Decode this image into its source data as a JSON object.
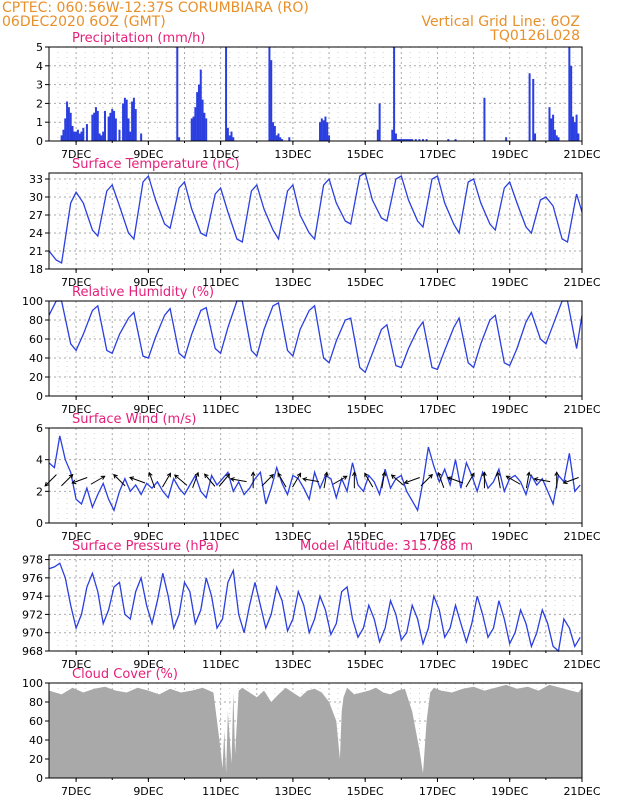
{
  "header": {
    "line1_left": "CPTEC:   060:56W-12:37S   CORUMBIARA (RO)",
    "line2_left": "06DEC2020 6OZ (GMT)",
    "line2_right": "Vertical Grid Line: 6OZ",
    "line3_right": "TQ0126L028"
  },
  "colors": {
    "header": "#e8902a",
    "title": "#e6207a",
    "series": "#2b3fe0",
    "cloud": "#a9a9a9",
    "grid": "#aaaaaa"
  },
  "x_axis": {
    "start": "06DEC2020 06Z",
    "end": "21DEC2020",
    "tick_labels": [
      "7DEC",
      "9DEC",
      "11DEC",
      "13DEC",
      "15DEC",
      "17DEC",
      "19DEC",
      "21DEC"
    ],
    "tick_days": [
      7,
      9,
      11,
      13,
      15,
      17,
      19,
      21
    ]
  },
  "chart_data": [
    {
      "type": "bar",
      "title": "Precipitation (mm/h)",
      "ylim": [
        0,
        5
      ],
      "yticks": [
        "0",
        "1",
        "2",
        "3",
        "4",
        "5"
      ],
      "x": [
        6.6,
        6.65,
        6.7,
        6.75,
        6.8,
        6.85,
        6.9,
        6.95,
        7.0,
        7.05,
        7.1,
        7.15,
        7.2,
        7.3,
        7.45,
        7.5,
        7.55,
        7.6,
        7.65,
        7.7,
        7.75,
        7.8,
        7.9,
        7.95,
        8.0,
        8.05,
        8.1,
        8.2,
        8.3,
        8.35,
        8.4,
        8.45,
        8.5,
        8.55,
        8.6,
        8.65,
        8.8,
        9.8,
        9.85,
        10.2,
        10.25,
        10.3,
        10.35,
        10.4,
        10.45,
        10.5,
        10.55,
        10.6,
        11.15,
        11.2,
        11.25,
        11.3,
        11.35,
        12.35,
        12.4,
        12.45,
        12.5,
        12.55,
        12.6,
        12.65,
        12.7,
        12.9,
        13.75,
        13.8,
        13.85,
        13.9,
        13.95,
        14.0,
        15.35,
        15.4,
        15.75,
        15.8,
        15.85,
        15.9,
        15.95,
        16.0,
        16.05,
        16.1,
        16.15,
        16.2,
        16.25,
        16.3,
        16.4,
        16.5,
        16.6,
        16.7,
        17.3,
        17.5,
        18.3,
        18.9,
        19.55,
        19.65,
        19.7,
        20.1,
        20.15,
        20.2,
        20.25,
        20.3,
        20.35,
        20.65,
        20.7,
        20.75,
        20.8,
        20.85,
        20.9
      ],
      "values": [
        0.3,
        0.6,
        1.2,
        2.1,
        1.8,
        1.5,
        0.8,
        0.5,
        0.5,
        0.6,
        0.4,
        0.5,
        0.7,
        0.9,
        1.4,
        1.5,
        1.8,
        1.6,
        0.4,
        0.3,
        0.5,
        1.6,
        1.3,
        1.5,
        1.7,
        1.6,
        1.2,
        0.6,
        2.0,
        2.3,
        2.2,
        1.2,
        0.5,
        2.1,
        2.3,
        1.7,
        0.4,
        5.0,
        0.2,
        1.2,
        1.3,
        1.8,
        2.6,
        3.0,
        3.8,
        2.2,
        1.5,
        1.2,
        5.0,
        0.7,
        0.3,
        0.5,
        0.2,
        5.0,
        4.3,
        1.0,
        0.8,
        0.3,
        0.4,
        0.2,
        0.1,
        0.2,
        1.0,
        1.2,
        1.1,
        1.3,
        1.0,
        0.3,
        0.6,
        2.0,
        0.6,
        5.0,
        0.4,
        0.1,
        0.1,
        0.1,
        0.1,
        0.1,
        0.1,
        0.1,
        0.1,
        0.1,
        0.1,
        0.1,
        0.1,
        0.1,
        0.1,
        0.1,
        2.3,
        0.2,
        3.6,
        3.3,
        0.4,
        1.8,
        1.2,
        1.4,
        0.6,
        0.3,
        0.2,
        5.0,
        4.0,
        1.3,
        1.0,
        1.4,
        0.4
      ]
    },
    {
      "type": "line",
      "title": "Surface Temperature (nC)",
      "ylim": [
        18,
        34
      ],
      "yticks": [
        "18",
        "21",
        "24",
        "27",
        "30",
        "33"
      ],
      "x": [
        6.25,
        6.45,
        6.6,
        6.85,
        7.0,
        7.2,
        7.45,
        7.6,
        7.85,
        8.0,
        8.2,
        8.45,
        8.6,
        8.85,
        9.0,
        9.2,
        9.45,
        9.6,
        9.85,
        10.0,
        10.2,
        10.45,
        10.6,
        10.85,
        11.0,
        11.2,
        11.45,
        11.6,
        11.85,
        12.0,
        12.2,
        12.45,
        12.6,
        12.85,
        13.0,
        13.2,
        13.45,
        13.6,
        13.85,
        14.0,
        14.2,
        14.45,
        14.6,
        14.85,
        15.0,
        15.2,
        15.45,
        15.6,
        15.85,
        16.0,
        16.2,
        16.45,
        16.6,
        16.85,
        17.0,
        17.2,
        17.45,
        17.6,
        17.85,
        18.0,
        18.2,
        18.45,
        18.6,
        18.85,
        19.0,
        19.2,
        19.45,
        19.6,
        19.85,
        20.0,
        20.2,
        20.45,
        20.6,
        20.85,
        21.0
      ],
      "values": [
        21.0,
        19.5,
        19.0,
        29.0,
        30.8,
        29.0,
        24.5,
        23.5,
        31.0,
        32.0,
        28.5,
        24.0,
        23.0,
        32.5,
        33.5,
        29.5,
        25.5,
        24.8,
        31.5,
        32.5,
        28.0,
        24.0,
        23.5,
        30.5,
        31.5,
        27.5,
        23.0,
        22.5,
        31.0,
        32.0,
        28.0,
        24.5,
        23.0,
        31.0,
        32.0,
        27.0,
        24.0,
        23.0,
        32.0,
        33.0,
        29.0,
        26.0,
        25.5,
        33.5,
        34.0,
        29.5,
        26.5,
        26.0,
        33.0,
        33.5,
        29.5,
        26.0,
        25.0,
        33.0,
        33.5,
        29.0,
        25.5,
        24.0,
        32.5,
        33.0,
        29.0,
        25.5,
        24.5,
        31.5,
        32.5,
        29.0,
        25.0,
        24.0,
        29.5,
        30.0,
        28.5,
        23.0,
        22.5,
        30.5,
        27.5
      ]
    },
    {
      "type": "line",
      "title": "Relative Humidity (%)",
      "ylim": [
        0,
        100
      ],
      "yticks": [
        "0",
        "20",
        "40",
        "60",
        "80",
        "100"
      ],
      "x": [
        6.25,
        6.45,
        6.6,
        6.85,
        7.0,
        7.2,
        7.45,
        7.6,
        7.85,
        8.0,
        8.2,
        8.45,
        8.6,
        8.85,
        9.0,
        9.2,
        9.45,
        9.6,
        9.85,
        10.0,
        10.2,
        10.45,
        10.6,
        10.85,
        11.0,
        11.2,
        11.45,
        11.6,
        11.85,
        12.0,
        12.2,
        12.45,
        12.6,
        12.85,
        13.0,
        13.2,
        13.45,
        13.6,
        13.85,
        14.0,
        14.2,
        14.45,
        14.6,
        14.85,
        15.0,
        15.2,
        15.45,
        15.6,
        15.85,
        16.0,
        16.2,
        16.45,
        16.6,
        16.85,
        17.0,
        17.2,
        17.45,
        17.6,
        17.85,
        18.0,
        18.2,
        18.45,
        18.6,
        18.85,
        19.0,
        19.2,
        19.45,
        19.6,
        19.85,
        20.0,
        20.2,
        20.45,
        20.6,
        20.85,
        21.0
      ],
      "values": [
        85,
        100,
        100,
        55,
        48,
        65,
        90,
        95,
        48,
        45,
        65,
        82,
        88,
        42,
        40,
        62,
        85,
        92,
        45,
        40,
        65,
        90,
        93,
        50,
        45,
        72,
        100,
        100,
        48,
        42,
        70,
        95,
        98,
        48,
        42,
        70,
        90,
        95,
        40,
        35,
        58,
        80,
        82,
        30,
        25,
        45,
        70,
        75,
        32,
        30,
        50,
        70,
        78,
        30,
        28,
        48,
        72,
        82,
        35,
        30,
        55,
        80,
        85,
        35,
        32,
        50,
        78,
        88,
        60,
        55,
        75,
        100,
        100,
        50,
        85
      ]
    },
    {
      "type": "line",
      "title": "Surface Wind (m/s)",
      "ylim": [
        0,
        6
      ],
      "yticks": [
        "0",
        "2",
        "4",
        "6"
      ],
      "x": [
        6.25,
        6.4,
        6.55,
        6.7,
        6.85,
        7.0,
        7.15,
        7.3,
        7.45,
        7.6,
        7.75,
        7.9,
        8.05,
        8.2,
        8.35,
        8.5,
        8.65,
        8.8,
        8.95,
        9.1,
        9.25,
        9.4,
        9.55,
        9.7,
        9.85,
        10.0,
        10.15,
        10.3,
        10.45,
        10.6,
        10.75,
        10.9,
        11.05,
        11.2,
        11.35,
        11.5,
        11.65,
        11.8,
        11.95,
        12.1,
        12.25,
        12.4,
        12.55,
        12.7,
        12.85,
        13.0,
        13.15,
        13.3,
        13.45,
        13.6,
        13.75,
        13.9,
        14.05,
        14.2,
        14.35,
        14.5,
        14.65,
        14.8,
        14.95,
        15.1,
        15.25,
        15.4,
        15.55,
        15.7,
        15.85,
        16.0,
        16.15,
        16.3,
        16.45,
        16.6,
        16.75,
        16.9,
        17.05,
        17.2,
        17.35,
        17.5,
        17.65,
        17.8,
        17.95,
        18.1,
        18.25,
        18.4,
        18.55,
        18.7,
        18.85,
        19.0,
        19.15,
        19.3,
        19.45,
        19.6,
        19.75,
        19.9,
        20.05,
        20.2,
        20.35,
        20.5,
        20.65,
        20.8,
        20.95
      ],
      "values": [
        3.8,
        3.5,
        5.5,
        4.0,
        3.2,
        1.5,
        1.2,
        2.2,
        1.0,
        1.8,
        2.5,
        1.5,
        0.8,
        2.0,
        2.8,
        2.0,
        2.4,
        1.8,
        2.5,
        2.2,
        2.6,
        2.0,
        1.6,
        2.8,
        2.2,
        1.8,
        2.4,
        3.0,
        2.0,
        1.6,
        3.0,
        2.4,
        2.8,
        3.2,
        2.0,
        2.6,
        1.8,
        2.2,
        2.8,
        3.2,
        1.2,
        2.2,
        3.5,
        2.5,
        1.8,
        3.0,
        2.8,
        2.2,
        1.5,
        3.2,
        2.2,
        3.0,
        2.8,
        1.6,
        2.8,
        2.0,
        3.8,
        2.4,
        2.0,
        3.0,
        2.6,
        1.8,
        3.4,
        2.2,
        2.8,
        3.0,
        2.0,
        1.4,
        0.8,
        2.6,
        4.8,
        3.6,
        2.6,
        3.4,
        2.4,
        4.0,
        2.2,
        3.8,
        3.0,
        2.0,
        3.2,
        2.2,
        2.6,
        3.4,
        2.0,
        2.8,
        3.0,
        2.6,
        1.8,
        3.0,
        2.4,
        2.8,
        2.0,
        1.2,
        3.0,
        2.6,
        4.4,
        2.0,
        2.4
      ],
      "arrow_x": [
        6.3,
        6.75,
        7.1,
        7.6,
        8.2,
        8.7,
        9.1,
        9.5,
        9.9,
        10.3,
        10.7,
        11.1,
        11.5,
        11.9,
        12.3,
        12.7,
        13.1,
        13.5,
        13.9,
        14.3,
        14.7,
        15.1,
        15.5,
        15.9,
        16.3,
        16.7,
        17.1,
        17.5,
        17.9,
        18.3,
        18.7,
        19.1,
        19.5,
        19.9,
        20.3,
        20.7
      ],
      "arrow_dir_deg": [
        225,
        45,
        200,
        30,
        135,
        160,
        110,
        60,
        140,
        70,
        130,
        50,
        170,
        90,
        45,
        120,
        60,
        170,
        80,
        30,
        90,
        120,
        80,
        140,
        200,
        45,
        110,
        160,
        60,
        90,
        100,
        150,
        80,
        170,
        90,
        200
      ]
    },
    {
      "type": "line",
      "title": "Surface Pressure (hPa)",
      "annotation": "Model Altitude: 315.788 m",
      "ylim": [
        968,
        978.5
      ],
      "yticks": [
        "968",
        "970",
        "972",
        "974",
        "976",
        "978"
      ],
      "x": [
        6.25,
        6.4,
        6.55,
        6.7,
        6.85,
        7.0,
        7.15,
        7.3,
        7.45,
        7.6,
        7.75,
        7.9,
        8.05,
        8.2,
        8.35,
        8.5,
        8.65,
        8.8,
        8.95,
        9.1,
        9.25,
        9.4,
        9.55,
        9.7,
        9.85,
        10.0,
        10.15,
        10.3,
        10.45,
        10.6,
        10.75,
        10.9,
        11.05,
        11.2,
        11.35,
        11.5,
        11.65,
        11.8,
        11.95,
        12.1,
        12.25,
        12.4,
        12.55,
        12.7,
        12.85,
        13.0,
        13.15,
        13.3,
        13.45,
        13.6,
        13.75,
        13.9,
        14.05,
        14.2,
        14.35,
        14.5,
        14.65,
        14.8,
        14.95,
        15.1,
        15.25,
        15.4,
        15.55,
        15.7,
        15.85,
        16.0,
        16.15,
        16.3,
        16.45,
        16.6,
        16.75,
        16.9,
        17.05,
        17.2,
        17.35,
        17.5,
        17.65,
        17.8,
        17.95,
        18.1,
        18.25,
        18.4,
        18.55,
        18.7,
        18.85,
        19.0,
        19.15,
        19.3,
        19.45,
        19.6,
        19.75,
        19.9,
        20.05,
        20.2,
        20.35,
        20.5,
        20.65,
        20.8,
        20.95
      ],
      "values": [
        977.0,
        977.2,
        977.6,
        976.0,
        973.0,
        970.5,
        972.0,
        975.0,
        976.5,
        974.5,
        971.0,
        972.5,
        975.0,
        975.5,
        972.0,
        971.5,
        974.5,
        976.0,
        973.0,
        971.0,
        973.5,
        976.5,
        974.0,
        970.5,
        972.0,
        975.5,
        974.5,
        971.0,
        972.5,
        976.0,
        974.0,
        970.5,
        971.5,
        975.5,
        976.8,
        972.0,
        970.0,
        973.0,
        975.5,
        973.0,
        970.5,
        972.0,
        975.0,
        973.5,
        970.2,
        971.5,
        974.5,
        973.0,
        970.0,
        971.5,
        974.0,
        972.5,
        969.8,
        971.0,
        974.5,
        975.0,
        971.5,
        969.5,
        970.5,
        973.0,
        971.5,
        969.0,
        970.5,
        973.5,
        972.0,
        969.2,
        970.0,
        973.0,
        971.5,
        968.8,
        970.5,
        974.0,
        972.5,
        969.5,
        970.5,
        973.0,
        971.0,
        969.0,
        971.0,
        974.0,
        972.0,
        969.5,
        970.5,
        973.5,
        971.5,
        968.8,
        970.0,
        972.5,
        971.0,
        968.5,
        970.0,
        972.5,
        971.0,
        968.5,
        968.0,
        971.5,
        970.5,
        968.5,
        969.5
      ]
    },
    {
      "type": "area",
      "title": "Cloud Cover (%)",
      "ylim": [
        0,
        100
      ],
      "yticks": [
        "0",
        "20",
        "40",
        "60",
        "80",
        "100"
      ],
      "x": [
        6.25,
        6.6,
        6.9,
        7.2,
        7.5,
        7.8,
        8.1,
        8.4,
        8.7,
        9.0,
        9.3,
        9.6,
        9.9,
        10.2,
        10.5,
        10.8,
        10.9,
        11.0,
        11.05,
        11.1,
        11.15,
        11.2,
        11.3,
        11.35,
        11.4,
        11.5,
        11.6,
        11.8,
        12.0,
        12.2,
        12.4,
        12.6,
        12.8,
        13.0,
        13.2,
        13.4,
        13.6,
        13.8,
        14.0,
        14.2,
        14.3,
        14.35,
        14.4,
        14.5,
        14.7,
        14.9,
        15.1,
        15.3,
        15.5,
        15.7,
        15.9,
        16.1,
        16.3,
        16.5,
        16.6,
        16.7,
        16.8,
        16.9,
        17.1,
        17.4,
        17.7,
        18.0,
        18.3,
        18.6,
        18.9,
        19.2,
        19.5,
        19.8,
        20.1,
        20.4,
        20.7,
        20.9,
        21.0
      ],
      "values": [
        92,
        88,
        95,
        90,
        94,
        96,
        92,
        90,
        95,
        92,
        88,
        94,
        90,
        92,
        95,
        90,
        60,
        30,
        10,
        50,
        5,
        70,
        15,
        90,
        25,
        92,
        95,
        90,
        85,
        92,
        80,
        88,
        95,
        90,
        85,
        92,
        94,
        90,
        80,
        60,
        20,
        70,
        85,
        95,
        88,
        90,
        92,
        95,
        90,
        88,
        92,
        94,
        70,
        30,
        5,
        60,
        90,
        95,
        92,
        90,
        94,
        96,
        92,
        95,
        98,
        94,
        96,
        92,
        98,
        95,
        92,
        90,
        95
      ]
    }
  ]
}
